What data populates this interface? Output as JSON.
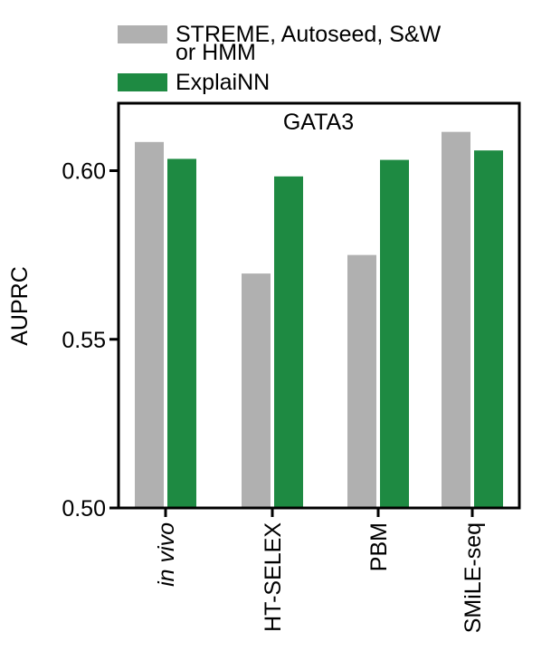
{
  "chart_data": {
    "type": "bar",
    "title": "GATA3",
    "xlabel": "",
    "ylabel": "AUPRC",
    "ylim": [
      0.5,
      0.62
    ],
    "yticks": [
      0.5,
      0.55,
      0.6
    ],
    "ytick_labels": [
      "0.50",
      "0.55",
      "0.60"
    ],
    "categories": [
      "in vivo",
      "HT-SELEX",
      "PBM",
      "SMiLE-seq"
    ],
    "category_italic": [
      true,
      false,
      false,
      false
    ],
    "legend_position": "top",
    "grid": false,
    "series": [
      {
        "name": "STREME, Autoseed, S&W or HMM",
        "name_lines": [
          "STREME, Autoseed, S&W",
          "or HMM"
        ],
        "color": "#b0b0b0",
        "values": [
          0.6085,
          0.5695,
          0.575,
          0.6115
        ]
      },
      {
        "name": "ExplaiNN",
        "name_lines": [
          "ExplaiNN"
        ],
        "color": "#1e8a42",
        "values": [
          0.6035,
          0.5983,
          0.6032,
          0.606
        ]
      }
    ]
  }
}
